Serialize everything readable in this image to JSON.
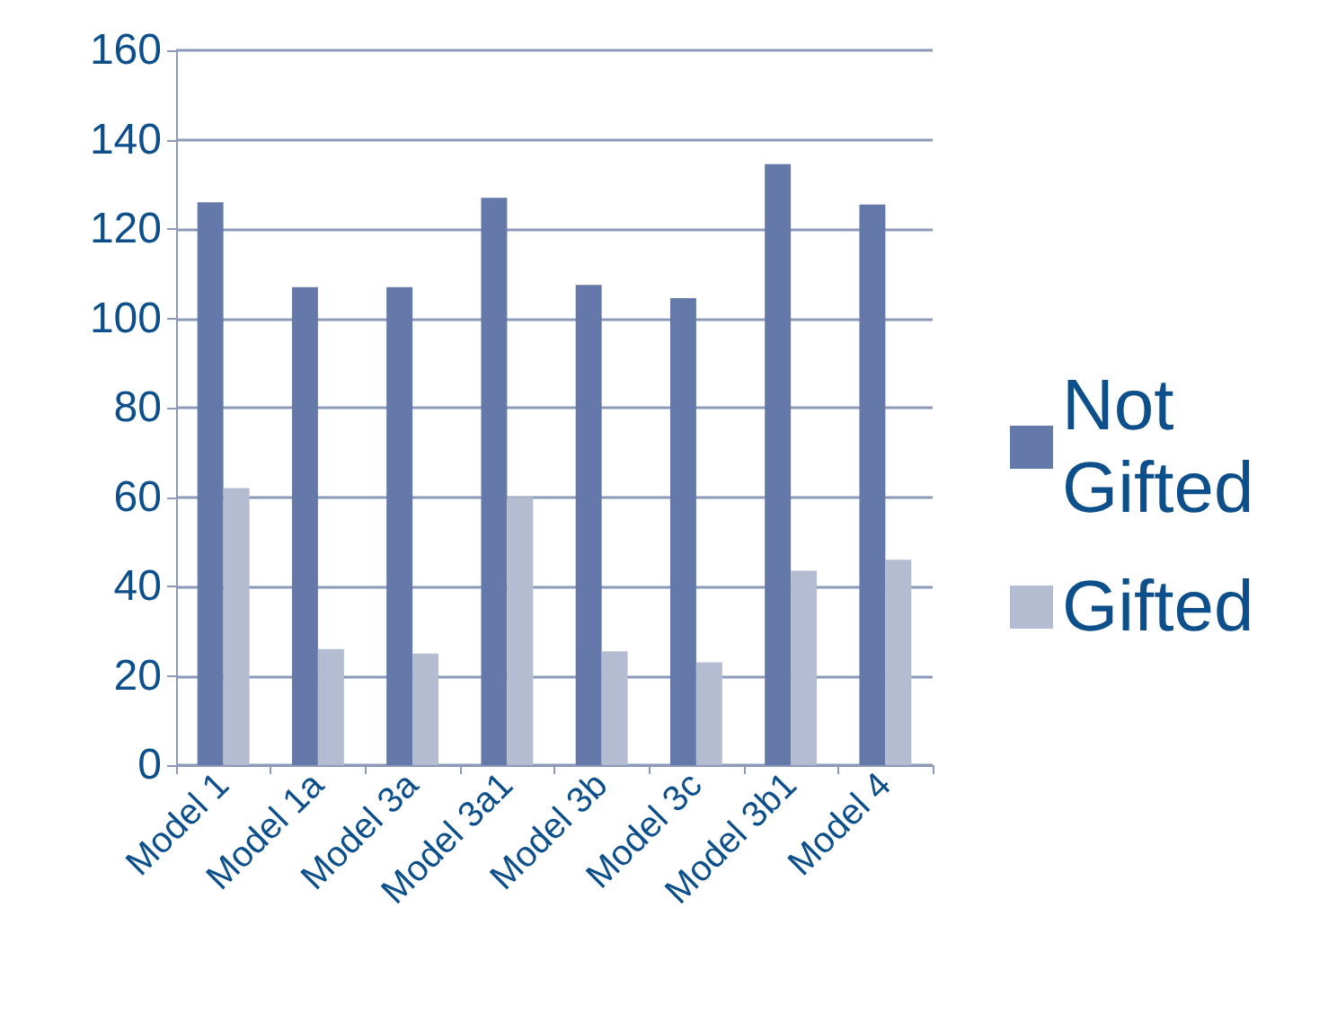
{
  "chart_data": {
    "type": "bar",
    "categories": [
      "Model 1",
      "Model 1a",
      "Model 3a",
      "Model 3a1",
      "Model 3b",
      "Model 3c",
      "Model 3b1",
      "Model 4"
    ],
    "series": [
      {
        "name": "Not Gifted",
        "color": "#6479a9",
        "values": [
          126,
          107,
          107,
          127,
          107.5,
          104.5,
          134.5,
          125.5
        ]
      },
      {
        "name": "Gifted",
        "color": "#b4bcd1",
        "values": [
          62,
          26,
          25,
          60,
          25.5,
          23,
          43.5,
          46
        ]
      }
    ],
    "ylim": [
      0,
      160
    ],
    "yticks": [
      0,
      20,
      40,
      60,
      80,
      100,
      120,
      140,
      160
    ],
    "grid": "y",
    "legend": "right"
  }
}
